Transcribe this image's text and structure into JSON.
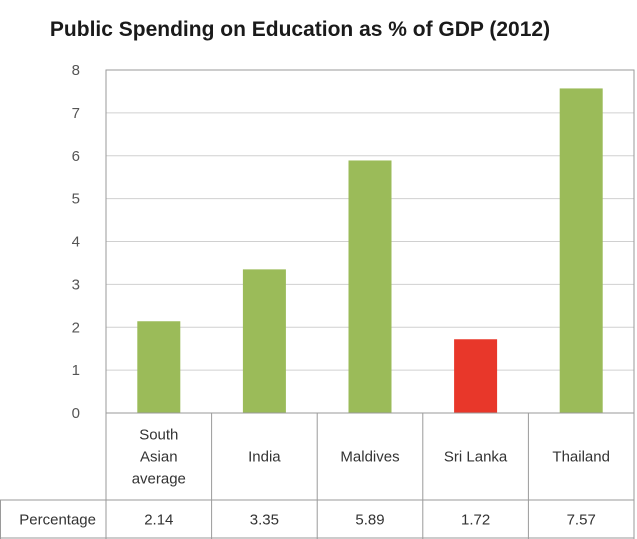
{
  "chart_data": {
    "type": "bar",
    "title": "Public Spending on Education as % of GDP (2012)",
    "categories": [
      [
        "South",
        "Asian",
        "average"
      ],
      [
        "India"
      ],
      [
        "Maldives"
      ],
      [
        "Sri Lanka"
      ],
      [
        "Thailand"
      ]
    ],
    "series": [
      {
        "name": "Percentage",
        "values": [
          2.14,
          3.35,
          5.89,
          1.72,
          7.57
        ]
      }
    ],
    "value_labels": [
      "2.14",
      "3.35",
      "5.89",
      "1.72",
      "7.57"
    ],
    "ylim": [
      0,
      8
    ],
    "yticks": [
      0,
      1,
      2,
      3,
      4,
      5,
      6,
      7,
      8
    ],
    "grid": true,
    "legend": "data-table-below",
    "colors": [
      "#9bbb59",
      "#9bbb59",
      "#9bbb59",
      "#e8372a",
      "#9bbb59"
    ],
    "xlabel": "",
    "ylabel": ""
  }
}
